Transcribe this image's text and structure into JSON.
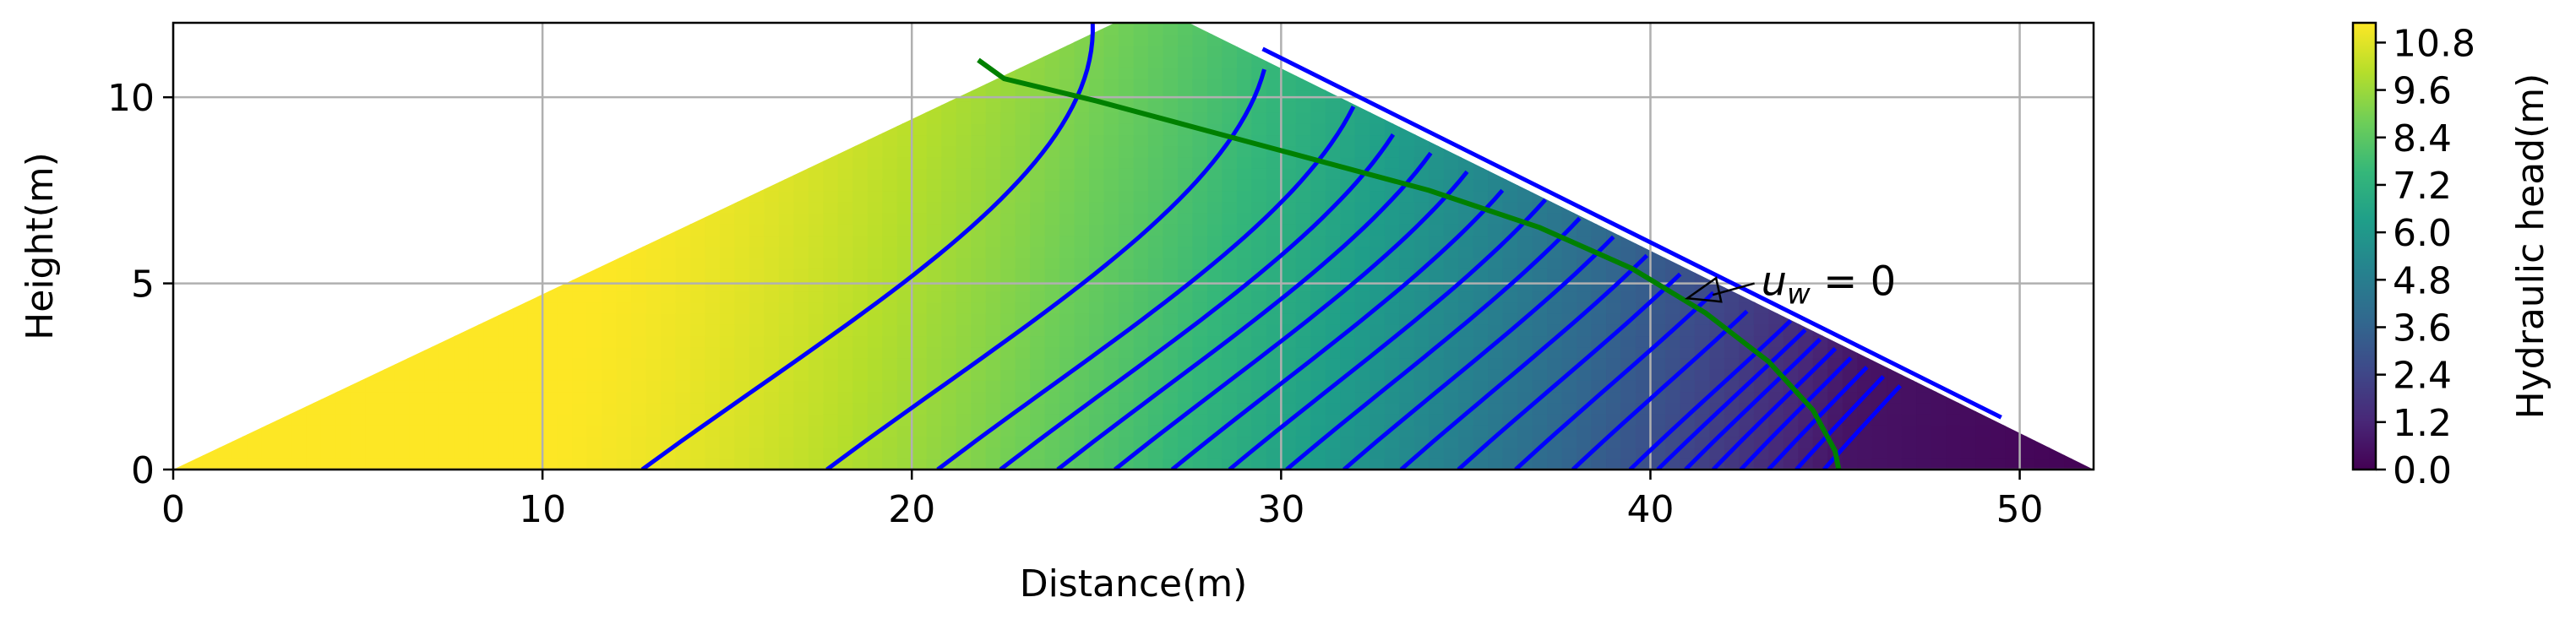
{
  "chart_data": {
    "type": "contour",
    "xlabel": "Distance(m)",
    "ylabel": "Height(m)",
    "xlim": [
      0,
      52
    ],
    "ylim": [
      0,
      12
    ],
    "xticks": [
      0,
      10,
      20,
      30,
      40,
      50
    ],
    "yticks": [
      0,
      5,
      10
    ],
    "grid": true,
    "domain_polygon": [
      [
        0,
        0
      ],
      [
        25.5,
        12
      ],
      [
        27.5,
        12
      ],
      [
        52,
        0
      ]
    ],
    "colorbar": {
      "label": "Hydraulic head(m)",
      "colormap": "viridis",
      "range": [
        0,
        11.3
      ],
      "ticks": [
        "0.0",
        "1.2",
        "2.4",
        "3.6",
        "4.8",
        "6.0",
        "7.2",
        "8.4",
        "9.6",
        "10.8"
      ],
      "tick_values": [
        0,
        1.2,
        2.4,
        3.6,
        4.8,
        6.0,
        7.2,
        8.4,
        9.6,
        10.8
      ],
      "colors": [
        "#440154",
        "#482878",
        "#3e4989",
        "#31688e",
        "#26828e",
        "#1f9e89",
        "#35b779",
        "#6ece58",
        "#b5de2b",
        "#fde725"
      ]
    },
    "contour_color": "#0000ff",
    "phreatic_line": {
      "color": "#008000",
      "points": [
        [
          21.8,
          11.0
        ],
        [
          22.5,
          10.5
        ],
        [
          25,
          9.9
        ],
        [
          28,
          9.1
        ],
        [
          31,
          8.3
        ],
        [
          34,
          7.5
        ],
        [
          37,
          6.5
        ],
        [
          39.5,
          5.4
        ],
        [
          41.5,
          4.2
        ],
        [
          43.2,
          2.9
        ],
        [
          44.4,
          1.6
        ],
        [
          45.0,
          0.5
        ],
        [
          45.1,
          0
        ]
      ]
    },
    "annotation": {
      "text": "u_w = 0",
      "label_at": [
        43.0,
        5.0
      ],
      "arrow_to": [
        41.0,
        4.6
      ]
    }
  }
}
